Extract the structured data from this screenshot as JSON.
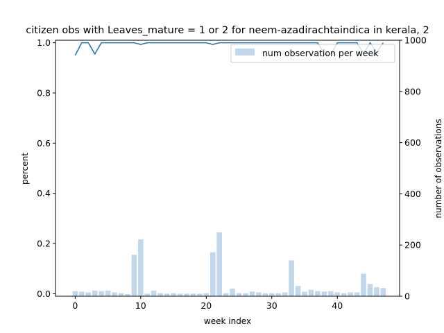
{
  "chart_data": {
    "type": "bar+line",
    "title": "citizen obs with Leaves_mature = 1 or 2 for neem-azadirachtaindica in kerala, 2",
    "xlabel": "week index",
    "ylabel_left": "percent",
    "ylabel_right": "number of observations",
    "xlim": [
      -3,
      49.5
    ],
    "ylim_left": [
      -0.01,
      1.01
    ],
    "ylim_right": [
      0,
      1000
    ],
    "x_ticks": [
      0,
      10,
      20,
      30,
      40
    ],
    "x_tick_labels": [
      "0",
      "10",
      "20",
      "30",
      "40"
    ],
    "y_left_ticks": [
      0.0,
      0.2,
      0.4,
      0.6,
      0.8,
      1.0
    ],
    "y_left_tick_labels": [
      "0.0",
      "0.2",
      "0.4",
      "0.6",
      "0.8",
      "1.0"
    ],
    "y_right_ticks": [
      0,
      200,
      400,
      600,
      800,
      1000
    ],
    "y_right_tick_labels": [
      "0",
      "200",
      "400",
      "600",
      "800",
      "1000"
    ],
    "legend": {
      "label": "num observation per week",
      "position": "upper-right"
    },
    "grid": false,
    "colors": {
      "line": "#1f77b4",
      "bar": "#c1d8ec"
    },
    "bars": {
      "x": [
        0,
        1,
        2,
        3,
        4,
        5,
        6,
        7,
        8,
        9,
        10,
        11,
        12,
        13,
        14,
        15,
        16,
        17,
        18,
        19,
        20,
        21,
        22,
        23,
        24,
        25,
        26,
        27,
        28,
        29,
        30,
        31,
        32,
        33,
        34,
        35,
        36,
        37,
        38,
        39,
        40,
        41,
        42,
        43,
        44,
        45,
        46,
        47
      ],
      "values": [
        20,
        18,
        15,
        22,
        20,
        22,
        15,
        12,
        8,
        162,
        222,
        10,
        22,
        12,
        10,
        12,
        10,
        10,
        10,
        10,
        12,
        172,
        250,
        12,
        30,
        12,
        12,
        18,
        15,
        12,
        12,
        12,
        15,
        140,
        40,
        18,
        25,
        20,
        18,
        20,
        15,
        12,
        15,
        15,
        88,
        48,
        35,
        32
      ]
    },
    "line": {
      "x": [
        0,
        1,
        2,
        3,
        4,
        5,
        6,
        7,
        8,
        9,
        10,
        11,
        12,
        13,
        14,
        15,
        16,
        17,
        18,
        19,
        20,
        21,
        22,
        23,
        24,
        25,
        26,
        27,
        28,
        29,
        30,
        31,
        32,
        33,
        34,
        35,
        36,
        37,
        38,
        39,
        40,
        41,
        42,
        43,
        44,
        45,
        46,
        47
      ],
      "values": [
        0.95,
        1.0,
        1.0,
        0.955,
        1.0,
        1.0,
        1.0,
        1.0,
        1.0,
        1.0,
        0.993,
        1.0,
        1.0,
        1.0,
        1.0,
        1.0,
        1.0,
        1.0,
        1.0,
        1.0,
        1.0,
        0.993,
        1.0,
        1.0,
        1.0,
        1.0,
        1.0,
        1.0,
        1.0,
        1.0,
        1.0,
        1.0,
        1.0,
        1.0,
        1.0,
        1.0,
        1.0,
        1.0,
        0.955,
        0.955,
        1.0,
        1.0,
        1.0,
        1.0,
        0.955,
        1.0,
        0.96,
        1.0
      ]
    }
  }
}
